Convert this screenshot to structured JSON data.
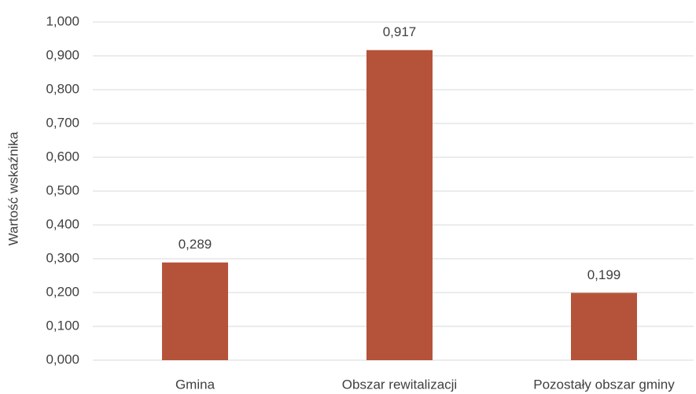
{
  "chart_data": {
    "type": "bar",
    "y_label": "Wartość wskaźnika",
    "categories": [
      "Gmina",
      "Obszar rewitalizacji",
      "Pozostały obszar gminy"
    ],
    "values": [
      0.289,
      0.917,
      0.199
    ],
    "value_labels": [
      "0,289",
      "0,917",
      "0,199"
    ],
    "color": "#b5533a",
    "ylim": [
      0,
      1
    ],
    "yticks": [
      {
        "value": 0,
        "label": "0,000"
      },
      {
        "value": 0.1,
        "label": "0,100"
      },
      {
        "value": 0.2,
        "label": "0,200"
      },
      {
        "value": 0.3,
        "label": "0,300"
      },
      {
        "value": 0.4,
        "label": "0,400"
      },
      {
        "value": 0.5,
        "label": "0,500"
      },
      {
        "value": 0.6,
        "label": "0,600"
      },
      {
        "value": 0.7,
        "label": "0,700"
      },
      {
        "value": 0.8,
        "label": "0,800"
      },
      {
        "value": 0.9,
        "label": "0,900"
      },
      {
        "value": 1,
        "label": "1,000"
      }
    ],
    "grid": true
  }
}
